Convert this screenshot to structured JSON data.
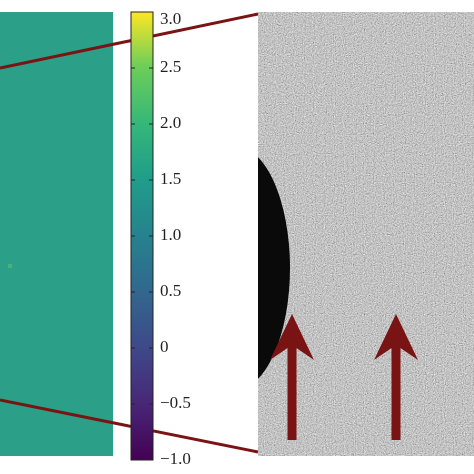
{
  "chart_data": {
    "type": "colorbar",
    "clim": [
      -1,
      3
    ],
    "ticks": [
      {
        "value": 3,
        "label": "3.0"
      },
      {
        "value": 2.5,
        "label": "2.5"
      },
      {
        "value": 2,
        "label": "2.0"
      },
      {
        "value": 1.5,
        "label": "1.5"
      },
      {
        "value": 1,
        "label": "1.0"
      },
      {
        "value": 0.5,
        "label": "0.5"
      },
      0,
      {
        "value": -0.5,
        "label": "−0.5"
      },
      {
        "value": -1,
        "label": "−1.0"
      }
    ]
  }
}
